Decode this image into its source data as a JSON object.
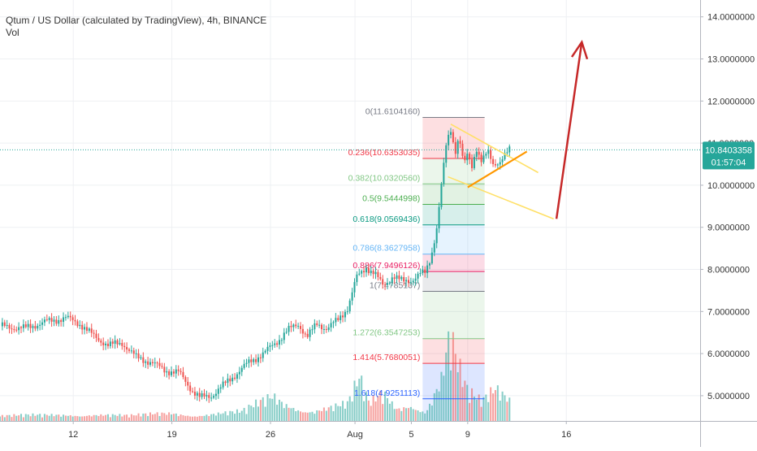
{
  "header": {
    "title": "Qtum / US Dollar (calculated by TradingView), 4h, BINANCE",
    "volume_label": "Vol"
  },
  "colors": {
    "up": "#26a69a",
    "down": "#ef5350",
    "arrow": "#c62828",
    "channel": "#ffe066",
    "channel_lower": "#ff9800",
    "price_badge": "#26a69a"
  },
  "price_badge": {
    "price": "10.8403358",
    "countdown": "01:57:04"
  },
  "chart_data": {
    "type": "candlestick",
    "symbol": "QTUMUSD",
    "interval": "4h",
    "exchange": "BINANCE",
    "y_range": [
      4.4,
      14.4
    ],
    "y_ticks": [
      "14.0000000",
      "13.0000000",
      "12.0000000",
      "11.0000000",
      "10.0000000",
      "9.0000000",
      "8.0000000",
      "7.0000000",
      "6.0000000",
      "5.0000000"
    ],
    "y_tick_values": [
      14,
      13,
      12,
      11,
      10,
      9,
      8,
      7,
      6,
      5
    ],
    "x_ticks": [
      "12",
      "19",
      "26",
      "Aug",
      "5",
      "9",
      "16"
    ],
    "x_tick_days": [
      12,
      19,
      26,
      32,
      36,
      40,
      47
    ],
    "x_day_range": [
      6.8,
      56.5
    ],
    "last_price": 10.84,
    "price_path": [
      [
        6.8,
        6.65
      ],
      [
        8.5,
        6.6
      ],
      [
        10,
        6.75
      ],
      [
        11.5,
        6.85
      ],
      [
        12.5,
        6.7
      ],
      [
        13.5,
        6.4
      ],
      [
        14.5,
        6.2
      ],
      [
        15.5,
        6.25
      ],
      [
        16.5,
        5.9
      ],
      [
        17.5,
        5.8
      ],
      [
        18.5,
        5.6
      ],
      [
        19.5,
        5.55
      ],
      [
        20.5,
        5.1
      ],
      [
        21,
        4.95
      ],
      [
        21.8,
        5.0
      ],
      [
        22.5,
        5.2
      ],
      [
        23.5,
        5.5
      ],
      [
        24.5,
        5.8
      ],
      [
        25.5,
        6.0
      ],
      [
        26.5,
        6.3
      ],
      [
        27.2,
        6.55
      ],
      [
        28,
        6.7
      ],
      [
        28.6,
        6.4
      ],
      [
        29.3,
        6.7
      ],
      [
        30,
        6.6
      ],
      [
        30.8,
        6.8
      ],
      [
        31.5,
        7.1
      ],
      [
        32.1,
        7.8
      ],
      [
        32.8,
        8.05
      ],
      [
        33.4,
        7.9
      ],
      [
        34,
        7.6
      ],
      [
        34.7,
        7.85
      ],
      [
        35.4,
        7.7
      ],
      [
        36,
        7.75
      ],
      [
        36.6,
        7.9
      ],
      [
        37,
        7.9
      ],
      [
        37.4,
        8.3
      ],
      [
        37.8,
        9.0
      ],
      [
        38.2,
        10.2
      ],
      [
        38.5,
        11.0
      ],
      [
        38.8,
        11.3
      ],
      [
        39.1,
        10.8
      ],
      [
        39.4,
        11.2
      ],
      [
        39.7,
        10.5
      ],
      [
        40,
        10.7
      ],
      [
        40.3,
        10.4
      ],
      [
        40.6,
        10.9
      ],
      [
        41,
        10.6
      ],
      [
        41.4,
        10.8
      ],
      [
        41.8,
        10.45
      ],
      [
        42.2,
        10.55
      ],
      [
        42.6,
        10.75
      ],
      [
        43,
        10.84
      ]
    ],
    "volume_axis_max": 1,
    "volume_path": [
      [
        6.8,
        0.06
      ],
      [
        10,
        0.07
      ],
      [
        13,
        0.09
      ],
      [
        16,
        0.06
      ],
      [
        19,
        0.1
      ],
      [
        21,
        0.08
      ],
      [
        24,
        0.11
      ],
      [
        26.2,
        0.3
      ],
      [
        27,
        0.22
      ],
      [
        29,
        0.14
      ],
      [
        31.5,
        0.2
      ],
      [
        32.3,
        0.48
      ],
      [
        33,
        0.2
      ],
      [
        34,
        0.34
      ],
      [
        35,
        0.16
      ],
      [
        36,
        0.25
      ],
      [
        37,
        0.12
      ],
      [
        38.2,
        0.55
      ],
      [
        38.5,
        0.85
      ],
      [
        38.8,
        1.0
      ],
      [
        39.2,
        0.7
      ],
      [
        39.6,
        0.5
      ],
      [
        40,
        0.33
      ],
      [
        41,
        0.22
      ],
      [
        42,
        0.4
      ],
      [
        43,
        0.3
      ]
    ],
    "fibonacci": [
      {
        "label": "0(11.6104160)",
        "ratio": 0,
        "price": 11.610416,
        "color": "#787b86"
      },
      {
        "label": "0.236(10.6353035)",
        "ratio": 0.236,
        "price": 10.6353035,
        "color": "#f23645"
      },
      {
        "label": "0.382(10.0320560)",
        "ratio": 0.382,
        "price": 10.032056,
        "color": "#81c784"
      },
      {
        "label": "0.5(9.5444998)",
        "ratio": 0.5,
        "price": 9.5444998,
        "color": "#4caf50"
      },
      {
        "label": "0.618(9.0569436)",
        "ratio": 0.618,
        "price": 9.0569436,
        "color": "#089981"
      },
      {
        "label": "0.786(8.3627958)",
        "ratio": 0.786,
        "price": 8.3627958,
        "color": "#64b5f6"
      },
      {
        "label": "0.886(7.9496126)",
        "ratio": 0.886,
        "price": 7.9496126,
        "color": "#e91e63"
      },
      {
        "label": "1(7.4785137)",
        "ratio": 1,
        "price": 7.4785137,
        "color": "#787b86"
      },
      {
        "label": "1.272(6.3547253)",
        "ratio": 1.272,
        "price": 6.3547253,
        "color": "#81c784"
      },
      {
        "label": "1.414(5.7680051)",
        "ratio": 1.414,
        "price": 5.7680051,
        "color": "#f23645"
      },
      {
        "label": "1.618(4.9251113)",
        "ratio": 1.618,
        "price": 4.9251113,
        "color": "#2962ff"
      }
    ],
    "fib_day_range": [
      36.8,
      41.2
    ],
    "channel_upper": [
      [
        38.8,
        11.45
      ],
      [
        45,
        10.3
      ]
    ],
    "channel_lower": [
      [
        38.6,
        10.2
      ],
      [
        46.1,
        9.2
      ]
    ],
    "channel_mid": [
      [
        40,
        9.95
      ],
      [
        44.2,
        10.8
      ]
    ],
    "arrow_path": [
      [
        46.3,
        9.2
      ],
      [
        48.1,
        13.4
      ]
    ]
  }
}
